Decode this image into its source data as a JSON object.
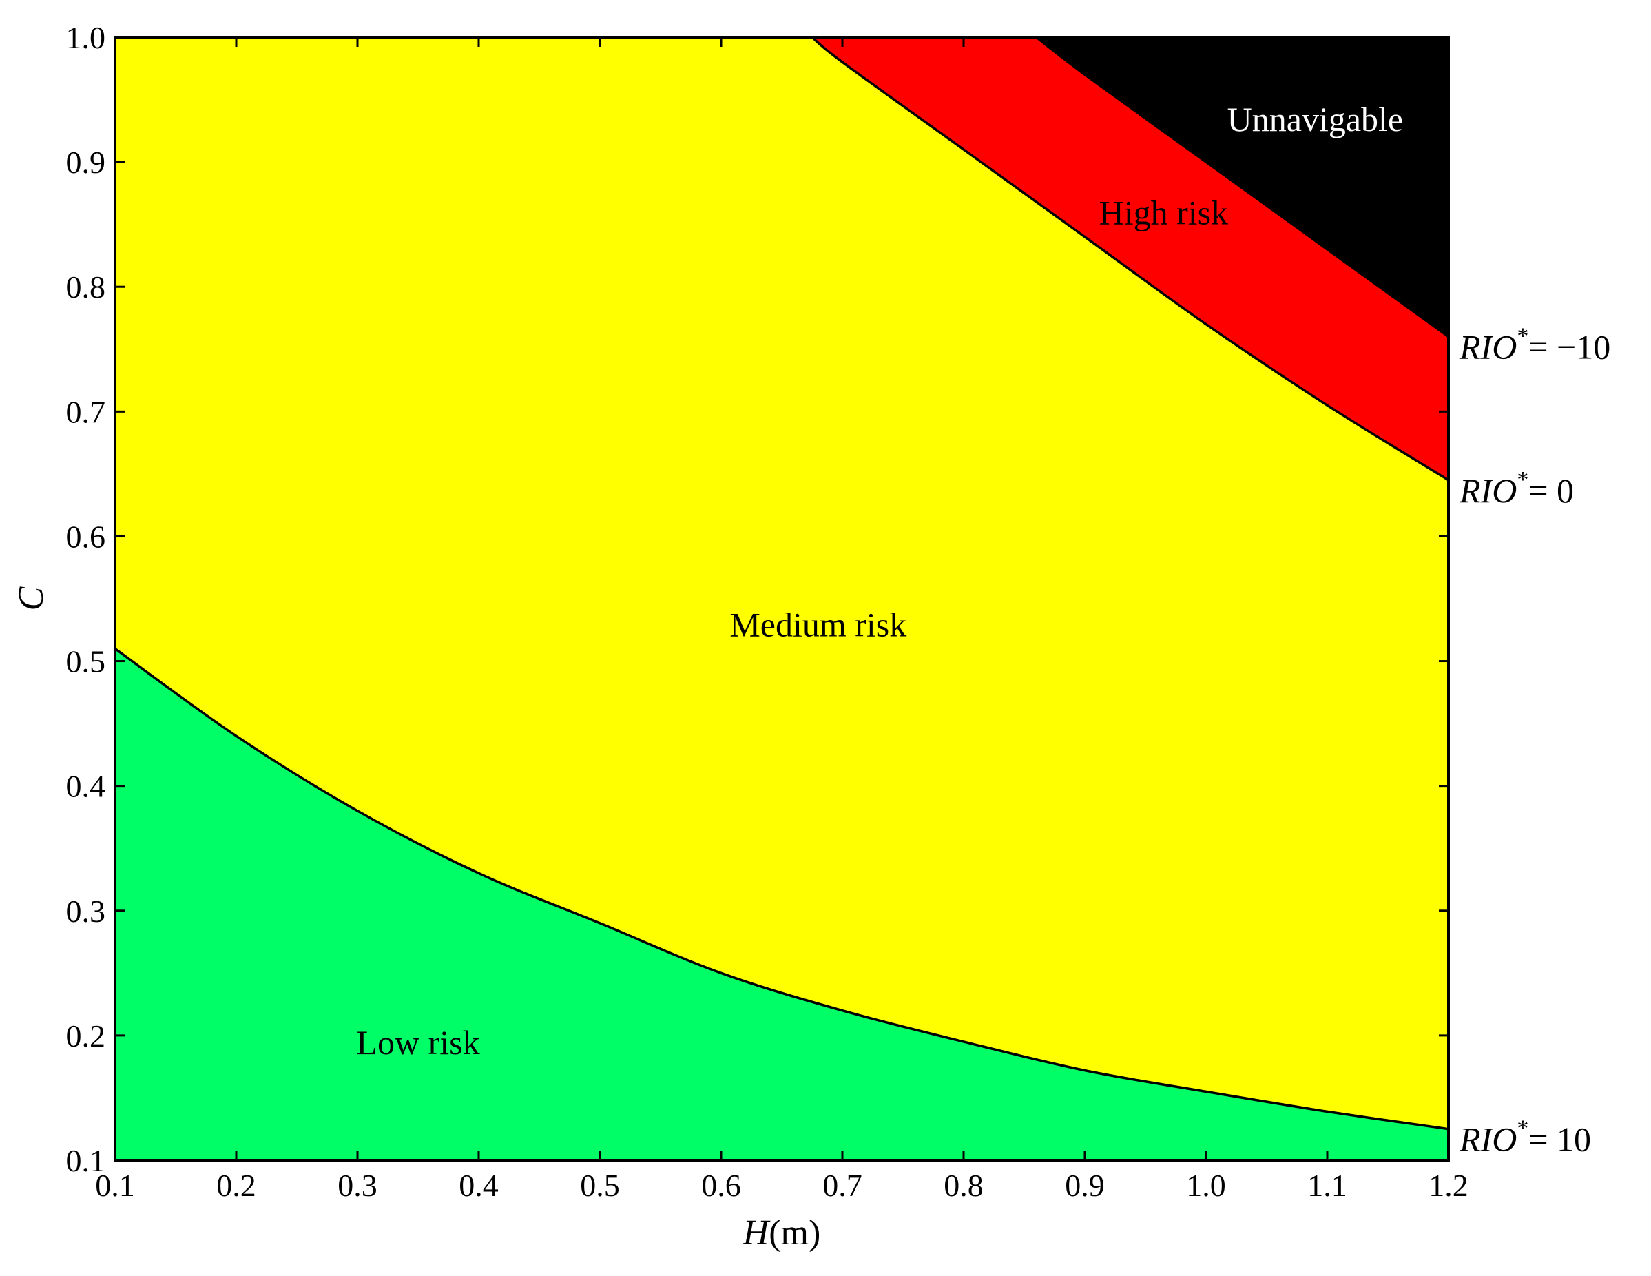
{
  "chart_data": {
    "type": "area",
    "xlabel": {
      "var": "H",
      "unit": "(m)"
    },
    "ylabel": "C",
    "xlim": [
      0.1,
      1.2
    ],
    "ylim": [
      0.1,
      1.0
    ],
    "grid": false,
    "x_ticks": [
      "0.1",
      "0.2",
      "0.3",
      "0.4",
      "0.5",
      "0.6",
      "0.7",
      "0.8",
      "0.9",
      "1.0",
      "1.1",
      "1.2"
    ],
    "y_ticks": [
      "0.1",
      "0.2",
      "0.3",
      "0.4",
      "0.5",
      "0.6",
      "0.7",
      "0.8",
      "0.9",
      "1.0"
    ],
    "x": [
      0.1,
      0.2,
      0.3,
      0.4,
      0.5,
      0.6,
      0.7,
      0.8,
      0.9,
      1.0,
      1.1,
      1.2
    ],
    "boundaries": [
      {
        "label": {
          "var": "RIO",
          "sup": "*",
          "eq": "= 10"
        },
        "key": "rio10",
        "y": [
          0.51,
          0.44,
          0.38,
          0.33,
          0.29,
          0.25,
          0.22,
          0.195,
          0.172,
          0.155,
          0.139,
          0.125
        ]
      },
      {
        "label": {
          "var": "RIO",
          "sup": "*",
          "eq": "=  0"
        },
        "key": "rio0",
        "x": [
          0.675,
          0.7,
          0.8,
          0.9,
          1.0,
          1.1,
          1.2
        ],
        "y": [
          1.0,
          0.98,
          0.91,
          0.84,
          0.77,
          0.705,
          0.645
        ]
      },
      {
        "label": {
          "var": "RIO",
          "sup": "*",
          "eq": "= −10"
        },
        "key": "rion10",
        "x": [
          0.86,
          0.9,
          1.0,
          1.1,
          1.2
        ],
        "y": [
          1.0,
          0.97,
          0.9,
          0.83,
          0.76
        ]
      }
    ],
    "regions": [
      {
        "name": "Low risk",
        "color": "#00ff66",
        "label_at": [
          0.35,
          0.185
        ],
        "text_color": "#000000"
      },
      {
        "name": "Medium risk",
        "color": "#ffff00",
        "label_at": [
          0.68,
          0.52
        ],
        "text_color": "#000000"
      },
      {
        "name": "High risk",
        "color": "#ff0000",
        "label_at": [
          0.965,
          0.85
        ],
        "text_color": "#000000"
      },
      {
        "name": "Unnavigable",
        "color": "#000000",
        "label_at": [
          1.09,
          0.925
        ],
        "text_color": "#ffffff"
      }
    ]
  }
}
